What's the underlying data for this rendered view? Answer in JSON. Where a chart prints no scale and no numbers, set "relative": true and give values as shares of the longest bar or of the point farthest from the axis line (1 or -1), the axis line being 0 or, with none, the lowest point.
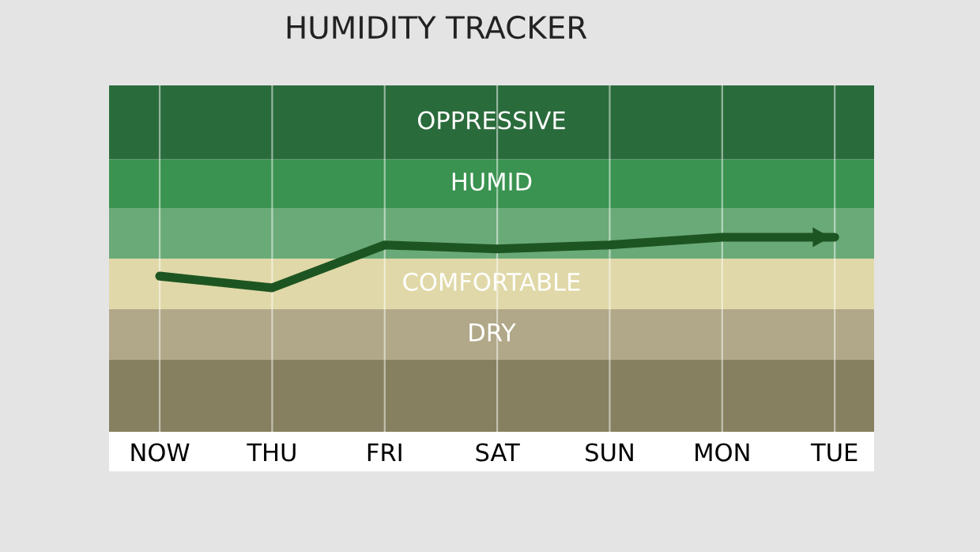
{
  "chart_data": {
    "type": "line",
    "title": "HUMIDITY TRACKER",
    "relative": true,
    "tick_labels": "x",
    "grid": "x",
    "line_style": "solid",
    "marker": "none",
    "categories": [
      "NOW",
      "THU",
      "FRI",
      "SAT",
      "SUN",
      "MON",
      "TUE"
    ],
    "series": [
      {
        "color": "#1d5522",
        "values": [
          0.8,
          0.74,
          0.96,
          0.94,
          0.96,
          1,
          1
        ]
      }
    ],
    "bands": [
      {
        "axis": "y",
        "from": 0,
        "to": 0.37,
        "label": null,
        "color": "#878060"
      },
      {
        "axis": "y",
        "from": 0.37,
        "to": 0.63,
        "label": "DRY",
        "color": "#b0a888"
      },
      {
        "axis": "y",
        "from": 0.63,
        "to": 0.89,
        "label": "COMFORTABLE",
        "color": "#e0d8a8"
      },
      {
        "axis": "y",
        "from": 0.89,
        "to": 1.15,
        "label": null,
        "color": "#6aaa78"
      },
      {
        "axis": "y",
        "from": 1.15,
        "to": 1.4,
        "label": "HUMID",
        "color": "#3a9350"
      },
      {
        "axis": "y",
        "from": 1.4,
        "to": 1.78,
        "label": "OPPRESSIVE",
        "color": "#2a6b3c"
      }
    ]
  }
}
